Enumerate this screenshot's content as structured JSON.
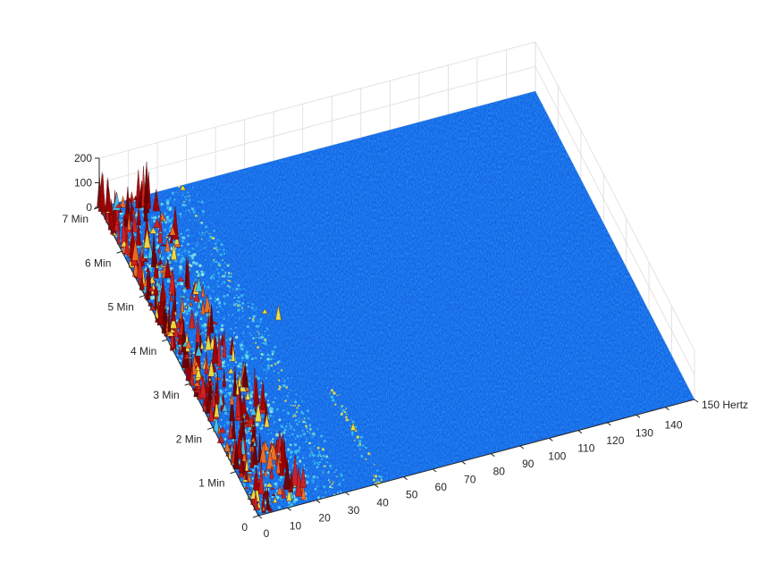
{
  "chart_data": {
    "type": "surface",
    "title": "",
    "x_axis": {
      "ticks": [
        0,
        10,
        20,
        30,
        40,
        50,
        60,
        70,
        80,
        90,
        100,
        110,
        120,
        130,
        140,
        150
      ],
      "tick_labels": [
        "0",
        "10",
        "20",
        "30",
        "40",
        "50",
        "60",
        "70",
        "80",
        "90",
        "100",
        "110",
        "120",
        "130",
        "140",
        "150 Hertz"
      ],
      "range": [
        0,
        150
      ]
    },
    "y_axis": {
      "ticks": [
        0,
        1,
        2,
        3,
        4,
        5,
        6,
        7
      ],
      "tick_labels": [
        "0",
        "1 Min",
        "2 Min",
        "3 Min",
        "4 Min",
        "5 Min",
        "6 Min",
        "7 Min"
      ],
      "range": [
        0,
        7
      ]
    },
    "z_axis": {
      "ticks": [
        0,
        100,
        200
      ],
      "tick_labels": [
        "0",
        "100",
        "200"
      ],
      "range": [
        0,
        200
      ]
    },
    "colormap": "jet",
    "grid": true,
    "features": [
      {
        "description_frequency_hz": [
          0,
          18
        ],
        "time_min": [
          0,
          7
        ],
        "amplitude_peak": 150
      },
      {
        "description_frequency_hz": [
          26,
          30
        ],
        "time_min": [
          0,
          7
        ],
        "amplitude_peak": 40
      },
      {
        "description_frequency_hz": [
          41,
          43
        ],
        "time_min": [
          0,
          2
        ],
        "amplitude_peak": 60
      },
      {
        "description_frequency_hz": [
          36,
          37
        ],
        "time_min": [
          3.5,
          4
        ],
        "amplitude_peak": 60
      }
    ]
  },
  "colors": {
    "background_blue": "#1565e6",
    "deep_blue": "#0a3fc8",
    "cyan": "#3ec8f0",
    "yellow": "#f0e040",
    "red": "#c01818",
    "dark_red": "#6a0000",
    "axis": "#262626",
    "grid": "#dcdcdc"
  }
}
